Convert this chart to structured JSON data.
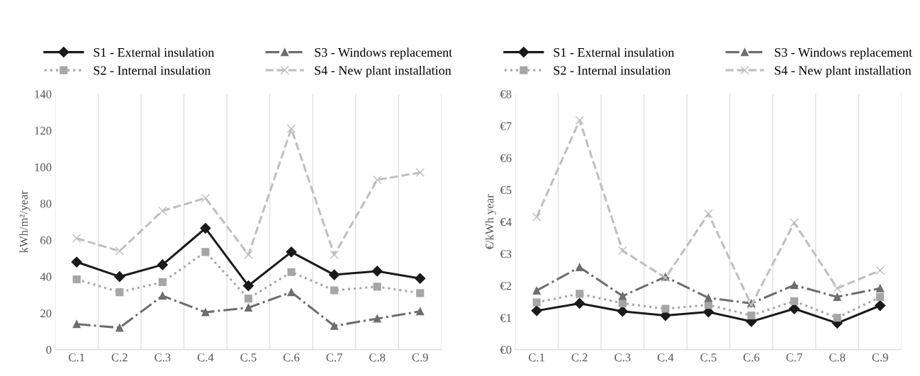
{
  "chart_data": [
    {
      "type": "line",
      "ylabel": "kWh/m²/year",
      "categories": [
        "C.1",
        "C.2",
        "C.3",
        "C.4",
        "C.5",
        "C.6",
        "C.7",
        "C.8",
        "C.9"
      ],
      "ylim": [
        0,
        140
      ],
      "yticks": [
        0,
        20,
        40,
        60,
        80,
        100,
        120,
        140
      ],
      "grid": "x",
      "legend": "top",
      "series": [
        {
          "name": "S1 - External insulation",
          "color": "#1a1a1a",
          "marker": "diamond",
          "line_style": "solid",
          "values": [
            48,
            40,
            46.5,
            66.5,
            35,
            53.5,
            41,
            43,
            39
          ]
        },
        {
          "name": "S2 - Internal insulation",
          "color": "#a6a6a6",
          "marker": "square",
          "line_style": "dotted",
          "values": [
            38.5,
            31.5,
            37,
            53.5,
            28,
            42.5,
            32.5,
            34.5,
            31
          ]
        },
        {
          "name": "S3 - Windows replacement",
          "color": "#6e6e6e",
          "marker": "triangle",
          "line_style": "dashdot",
          "values": [
            14,
            12,
            29.5,
            20.5,
            23,
            31.5,
            13,
            17,
            21
          ]
        },
        {
          "name": "S4 - New plant installation",
          "color": "#bfbfbf",
          "marker": "cross",
          "line_style": "dashed",
          "values": [
            61,
            54,
            76,
            83,
            52,
            121,
            52,
            93,
            97
          ]
        }
      ]
    },
    {
      "type": "line",
      "ylabel": "€/kWh year",
      "categories": [
        "C.1",
        "C.2",
        "C.3",
        "C.4",
        "C.5",
        "C.6",
        "C.7",
        "C.8",
        "C.9"
      ],
      "ylim": [
        0,
        8
      ],
      "yticks": [
        {
          "value": 0,
          "label": "€0"
        },
        {
          "value": 1,
          "label": "€1"
        },
        {
          "value": 2,
          "label": "€2"
        },
        {
          "value": 3,
          "label": "€3"
        },
        {
          "value": 4,
          "label": "€4"
        },
        {
          "value": 5,
          "label": "€5"
        },
        {
          "value": 6,
          "label": "€6"
        },
        {
          "value": 7,
          "label": "€7"
        },
        {
          "value": 8,
          "label": "€8"
        }
      ],
      "grid": "x",
      "legend": "top",
      "series": [
        {
          "name": "S1 - External insulation",
          "color": "#1a1a1a",
          "marker": "diamond",
          "line_style": "solid",
          "values": [
            1.22,
            1.45,
            1.2,
            1.07,
            1.18,
            0.88,
            1.28,
            0.83,
            1.38
          ]
        },
        {
          "name": "S2 - Internal insulation",
          "color": "#a6a6a6",
          "marker": "square",
          "line_style": "dotted",
          "values": [
            1.48,
            1.75,
            1.45,
            1.28,
            1.4,
            1.07,
            1.52,
            1.0,
            1.65
          ]
        },
        {
          "name": "S3 - Windows replacement",
          "color": "#6e6e6e",
          "marker": "triangle",
          "line_style": "dashdot",
          "values": [
            1.85,
            2.58,
            1.68,
            2.28,
            1.62,
            1.45,
            2.02,
            1.65,
            1.92
          ]
        },
        {
          "name": "S4 - New plant installation",
          "color": "#bfbfbf",
          "marker": "cross",
          "line_style": "dashed",
          "values": [
            4.15,
            7.18,
            3.1,
            2.25,
            4.25,
            1.4,
            3.97,
            1.92,
            2.48
          ]
        }
      ]
    }
  ]
}
